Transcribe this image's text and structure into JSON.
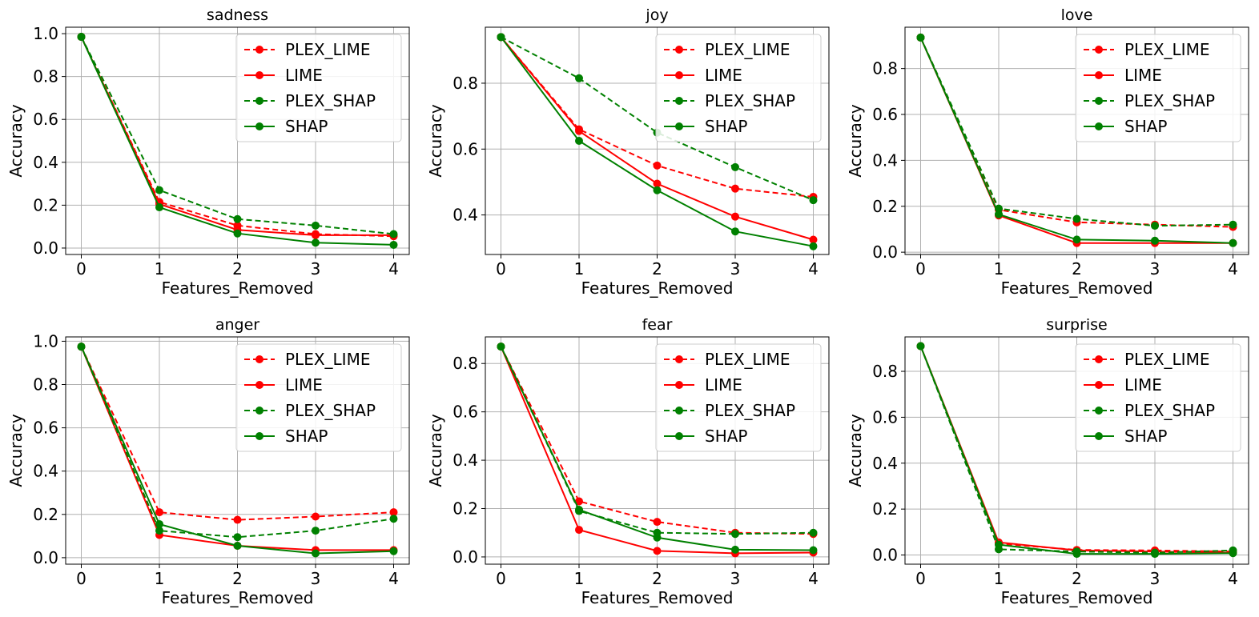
{
  "figure": {
    "label_colors": {
      "lime": "#ff0000",
      "shap": "#008000",
      "grid": "#b0b0b0"
    }
  },
  "chart_data": [
    {
      "type": "line",
      "title": "sadness",
      "xlabel": "Features_Removed",
      "ylabel": "Accuracy",
      "x": [
        0,
        1,
        2,
        3,
        4
      ],
      "xlim": [
        -0.2,
        4.2
      ],
      "ylim": [
        -0.03,
        1.03
      ],
      "yticks": [
        0.0,
        0.2,
        0.4,
        0.6,
        0.8,
        1.0
      ],
      "ytick_labels": [
        "0.0",
        "0.2",
        "0.4",
        "0.6",
        "0.8",
        "1.0"
      ],
      "xtick_labels": [
        "0",
        "1",
        "2",
        "3",
        "4"
      ],
      "legend_position": "top-right",
      "grid": true,
      "series": [
        {
          "name": "PLEX_LIME",
          "color": "#ff0000",
          "dashed": true,
          "values": [
            0.985,
            0.215,
            0.105,
            0.065,
            0.055
          ]
        },
        {
          "name": "LIME",
          "color": "#ff0000",
          "dashed": false,
          "values": [
            0.985,
            0.205,
            0.085,
            0.06,
            0.06
          ]
        },
        {
          "name": "PLEX_SHAP",
          "color": "#008000",
          "dashed": true,
          "values": [
            0.985,
            0.27,
            0.135,
            0.105,
            0.065
          ]
        },
        {
          "name": "SHAP",
          "color": "#008000",
          "dashed": false,
          "values": [
            0.985,
            0.19,
            0.068,
            0.025,
            0.015
          ]
        }
      ]
    },
    {
      "type": "line",
      "title": "joy",
      "xlabel": "Features_Removed",
      "ylabel": "Accuracy",
      "x": [
        0,
        1,
        2,
        3,
        4
      ],
      "xlim": [
        -0.2,
        4.2
      ],
      "ylim": [
        0.28,
        0.97
      ],
      "yticks": [
        0.4,
        0.6,
        0.8
      ],
      "ytick_labels": [
        "0.4",
        "0.6",
        "0.8"
      ],
      "xtick_labels": [
        "0",
        "1",
        "2",
        "3",
        "4"
      ],
      "legend_position": "top-right",
      "grid": true,
      "series": [
        {
          "name": "PLEX_LIME",
          "color": "#ff0000",
          "dashed": true,
          "values": [
            0.94,
            0.66,
            0.55,
            0.48,
            0.455
          ]
        },
        {
          "name": "LIME",
          "color": "#ff0000",
          "dashed": false,
          "values": [
            0.94,
            0.655,
            0.495,
            0.395,
            0.325
          ]
        },
        {
          "name": "PLEX_SHAP",
          "color": "#008000",
          "dashed": true,
          "values": [
            0.94,
            0.815,
            0.65,
            0.545,
            0.445
          ]
        },
        {
          "name": "SHAP",
          "color": "#008000",
          "dashed": false,
          "values": [
            0.94,
            0.625,
            0.475,
            0.35,
            0.305
          ]
        }
      ]
    },
    {
      "type": "line",
      "title": "love",
      "xlabel": "Features_Removed",
      "ylabel": "Accuracy",
      "x": [
        0,
        1,
        2,
        3,
        4
      ],
      "xlim": [
        -0.2,
        4.2
      ],
      "ylim": [
        -0.01,
        0.98
      ],
      "yticks": [
        0.0,
        0.2,
        0.4,
        0.6,
        0.8
      ],
      "ytick_labels": [
        "0.0",
        "0.2",
        "0.4",
        "0.6",
        "0.8"
      ],
      "xtick_labels": [
        "0",
        "1",
        "2",
        "3",
        "4"
      ],
      "legend_position": "top-right",
      "grid": true,
      "series": [
        {
          "name": "PLEX_LIME",
          "color": "#ff0000",
          "dashed": true,
          "values": [
            0.935,
            0.185,
            0.13,
            0.12,
            0.11
          ]
        },
        {
          "name": "LIME",
          "color": "#ff0000",
          "dashed": false,
          "values": [
            0.935,
            0.16,
            0.04,
            0.04,
            0.04
          ]
        },
        {
          "name": "PLEX_SHAP",
          "color": "#008000",
          "dashed": true,
          "values": [
            0.935,
            0.19,
            0.145,
            0.115,
            0.12
          ]
        },
        {
          "name": "SHAP",
          "color": "#008000",
          "dashed": false,
          "values": [
            0.935,
            0.165,
            0.055,
            0.05,
            0.04
          ]
        }
      ]
    },
    {
      "type": "line",
      "title": "anger",
      "xlabel": "Features_Removed",
      "ylabel": "Accuracy",
      "x": [
        0,
        1,
        2,
        3,
        4
      ],
      "xlim": [
        -0.2,
        4.2
      ],
      "ylim": [
        -0.03,
        1.02
      ],
      "yticks": [
        0.0,
        0.2,
        0.4,
        0.6,
        0.8,
        1.0
      ],
      "ytick_labels": [
        "0.0",
        "0.2",
        "0.4",
        "0.6",
        "0.8",
        "1.0"
      ],
      "xtick_labels": [
        "0",
        "1",
        "2",
        "3",
        "4"
      ],
      "legend_position": "top-right",
      "grid": true,
      "series": [
        {
          "name": "PLEX_LIME",
          "color": "#ff0000",
          "dashed": true,
          "values": [
            0.975,
            0.21,
            0.175,
            0.19,
            0.21
          ]
        },
        {
          "name": "LIME",
          "color": "#ff0000",
          "dashed": false,
          "values": [
            0.975,
            0.105,
            0.055,
            0.035,
            0.035
          ]
        },
        {
          "name": "PLEX_SHAP",
          "color": "#008000",
          "dashed": true,
          "values": [
            0.975,
            0.125,
            0.095,
            0.125,
            0.18
          ]
        },
        {
          "name": "SHAP",
          "color": "#008000",
          "dashed": false,
          "values": [
            0.975,
            0.155,
            0.055,
            0.02,
            0.03
          ]
        }
      ]
    },
    {
      "type": "line",
      "title": "fear",
      "xlabel": "Features_Removed",
      "ylabel": "Accuracy",
      "x": [
        0,
        1,
        2,
        3,
        4
      ],
      "xlim": [
        -0.2,
        4.2
      ],
      "ylim": [
        -0.03,
        0.91
      ],
      "yticks": [
        0.0,
        0.2,
        0.4,
        0.6,
        0.8
      ],
      "ytick_labels": [
        "0.0",
        "0.2",
        "0.4",
        "0.6",
        "0.8"
      ],
      "xtick_labels": [
        "0",
        "1",
        "2",
        "3",
        "4"
      ],
      "legend_position": "top-right",
      "grid": true,
      "series": [
        {
          "name": "PLEX_LIME",
          "color": "#ff0000",
          "dashed": true,
          "values": [
            0.87,
            0.23,
            0.145,
            0.1,
            0.095
          ]
        },
        {
          "name": "LIME",
          "color": "#ff0000",
          "dashed": false,
          "values": [
            0.87,
            0.112,
            0.025,
            0.015,
            0.018
          ]
        },
        {
          "name": "PLEX_SHAP",
          "color": "#008000",
          "dashed": true,
          "values": [
            0.87,
            0.19,
            0.1,
            0.095,
            0.1
          ]
        },
        {
          "name": "SHAP",
          "color": "#008000",
          "dashed": false,
          "values": [
            0.87,
            0.195,
            0.08,
            0.03,
            0.028
          ]
        }
      ]
    },
    {
      "type": "line",
      "title": "surprise",
      "xlabel": "Features_Removed",
      "ylabel": "Accuracy",
      "x": [
        0,
        1,
        2,
        3,
        4
      ],
      "xlim": [
        -0.2,
        4.2
      ],
      "ylim": [
        -0.04,
        0.95
      ],
      "yticks": [
        0.0,
        0.2,
        0.4,
        0.6,
        0.8
      ],
      "ytick_labels": [
        "0.0",
        "0.2",
        "0.4",
        "0.6",
        "0.8"
      ],
      "xtick_labels": [
        "0",
        "1",
        "2",
        "3",
        "4"
      ],
      "legend_position": "top-right",
      "grid": true,
      "series": [
        {
          "name": "PLEX_LIME",
          "color": "#ff0000",
          "dashed": true,
          "values": [
            0.91,
            0.05,
            0.022,
            0.02,
            0.015
          ]
        },
        {
          "name": "LIME",
          "color": "#ff0000",
          "dashed": false,
          "values": [
            0.91,
            0.055,
            0.02,
            0.015,
            0.01
          ]
        },
        {
          "name": "PLEX_SHAP",
          "color": "#008000",
          "dashed": true,
          "values": [
            0.91,
            0.025,
            0.015,
            0.01,
            0.02
          ]
        },
        {
          "name": "SHAP",
          "color": "#008000",
          "dashed": false,
          "values": [
            0.91,
            0.045,
            0.005,
            0.005,
            0.008
          ]
        }
      ]
    }
  ]
}
